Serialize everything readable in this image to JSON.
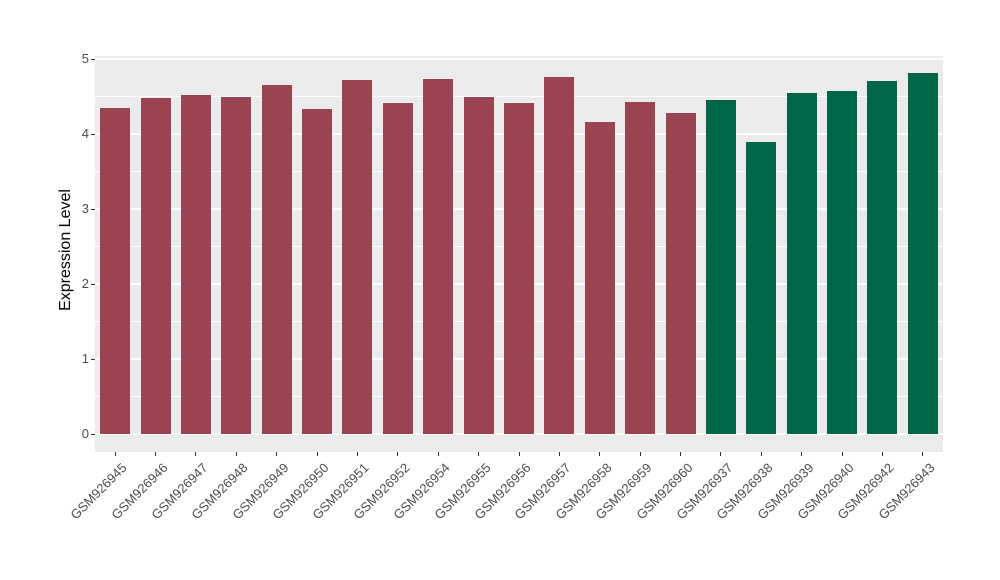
{
  "chart_data": {
    "type": "bar",
    "title": "",
    "xlabel": "",
    "ylabel": "Expression Level",
    "ylim": [
      0,
      5
    ],
    "yticks": [
      0,
      1,
      2,
      3,
      4,
      5
    ],
    "grid": "on",
    "legend_position": "none",
    "categories": [
      "GSM926945",
      "GSM926946",
      "GSM926947",
      "GSM926948",
      "GSM926949",
      "GSM926950",
      "GSM926951",
      "GSM926952",
      "GSM926954",
      "GSM926955",
      "GSM926956",
      "GSM926957",
      "GSM926958",
      "GSM926959",
      "GSM926960",
      "GSM926937",
      "GSM926938",
      "GSM926939",
      "GSM926940",
      "GSM926942",
      "GSM926943"
    ],
    "values": [
      4.35,
      4.48,
      4.52,
      4.49,
      4.66,
      4.34,
      4.72,
      4.41,
      4.74,
      4.5,
      4.42,
      4.76,
      4.16,
      4.43,
      4.28,
      4.45,
      3.9,
      4.55,
      4.58,
      4.71,
      4.81
    ],
    "bar_colors": [
      "#9A4452",
      "#9A4452",
      "#9A4452",
      "#9A4452",
      "#9A4452",
      "#9A4452",
      "#9A4452",
      "#9A4452",
      "#9A4452",
      "#9A4452",
      "#9A4452",
      "#9A4452",
      "#9A4452",
      "#9A4452",
      "#9A4452",
      "#006647",
      "#006647",
      "#006647",
      "#006647",
      "#006647",
      "#006647"
    ],
    "colors": {
      "group_a_bar": "#9A4452",
      "group_b_bar": "#006647",
      "panel_background": "#EBEBEB",
      "gridline": "#FFFFFF",
      "tick_mark": "#333333",
      "tick_label": "#4D4D4D",
      "axis_title": "#000000"
    }
  }
}
